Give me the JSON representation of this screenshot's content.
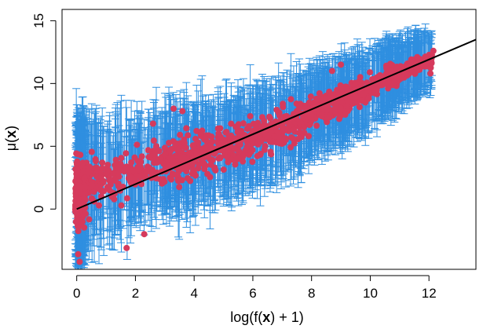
{
  "chart_data": {
    "type": "scatter",
    "title": "",
    "xlabel": {
      "before": "log(f(",
      "bold": "x",
      "after": ") + 1)"
    },
    "ylabel": {
      "before": "μ(",
      "bold": "x",
      "after": ")"
    },
    "xlim": [
      -0.5,
      13.6
    ],
    "ylim": [
      -4.8,
      15.9
    ],
    "x_ticks": [
      0,
      2,
      4,
      6,
      8,
      10,
      12
    ],
    "y_ticks": [
      0,
      5,
      10,
      15
    ],
    "grid": false,
    "legend": "none",
    "colors": {
      "error_bars": "#2f8fe0",
      "points": "#d63a5c",
      "fit_line": "#000000",
      "axes": "#000000"
    },
    "fit_line": {
      "x": [
        0,
        13.6
      ],
      "y": [
        0,
        13.5
      ]
    },
    "point_cloud": {
      "description_bins_x": [
        0,
        1,
        2,
        3,
        4,
        5,
        6,
        7,
        8,
        9,
        10,
        11,
        12
      ],
      "mean_y": [
        1.4,
        2.4,
        3.0,
        3.6,
        4.2,
        4.9,
        5.7,
        6.5,
        7.5,
        8.6,
        9.7,
        10.9,
        11.9
      ],
      "spread_y": [
        2.4,
        1.6,
        1.5,
        1.5,
        1.5,
        1.5,
        1.5,
        1.4,
        1.3,
        1.1,
        0.9,
        0.7,
        0.5
      ],
      "error_half_width": [
        4.4,
        4.0,
        3.8,
        3.6,
        3.4,
        3.3,
        3.2,
        3.1,
        3.0,
        2.9,
        2.7,
        2.4,
        2.0
      ]
    },
    "highlighted_points": [
      {
        "x": 12.15,
        "y": 12.6
      },
      {
        "x": 12.05,
        "y": 10.8
      },
      {
        "x": 11.9,
        "y": 11.6
      },
      {
        "x": 11.6,
        "y": 12.1
      },
      {
        "x": 9.0,
        "y": 11.5
      },
      {
        "x": 8.7,
        "y": 11.0
      },
      {
        "x": 2.3,
        "y": -2.0
      },
      {
        "x": 1.7,
        "y": -3.1
      },
      {
        "x": 0.1,
        "y": -4.2
      },
      {
        "x": 0.05,
        "y": -3.6
      },
      {
        "x": 3.3,
        "y": 8.0
      },
      {
        "x": 3.6,
        "y": 7.8
      },
      {
        "x": 2.6,
        "y": 6.8
      }
    ]
  }
}
